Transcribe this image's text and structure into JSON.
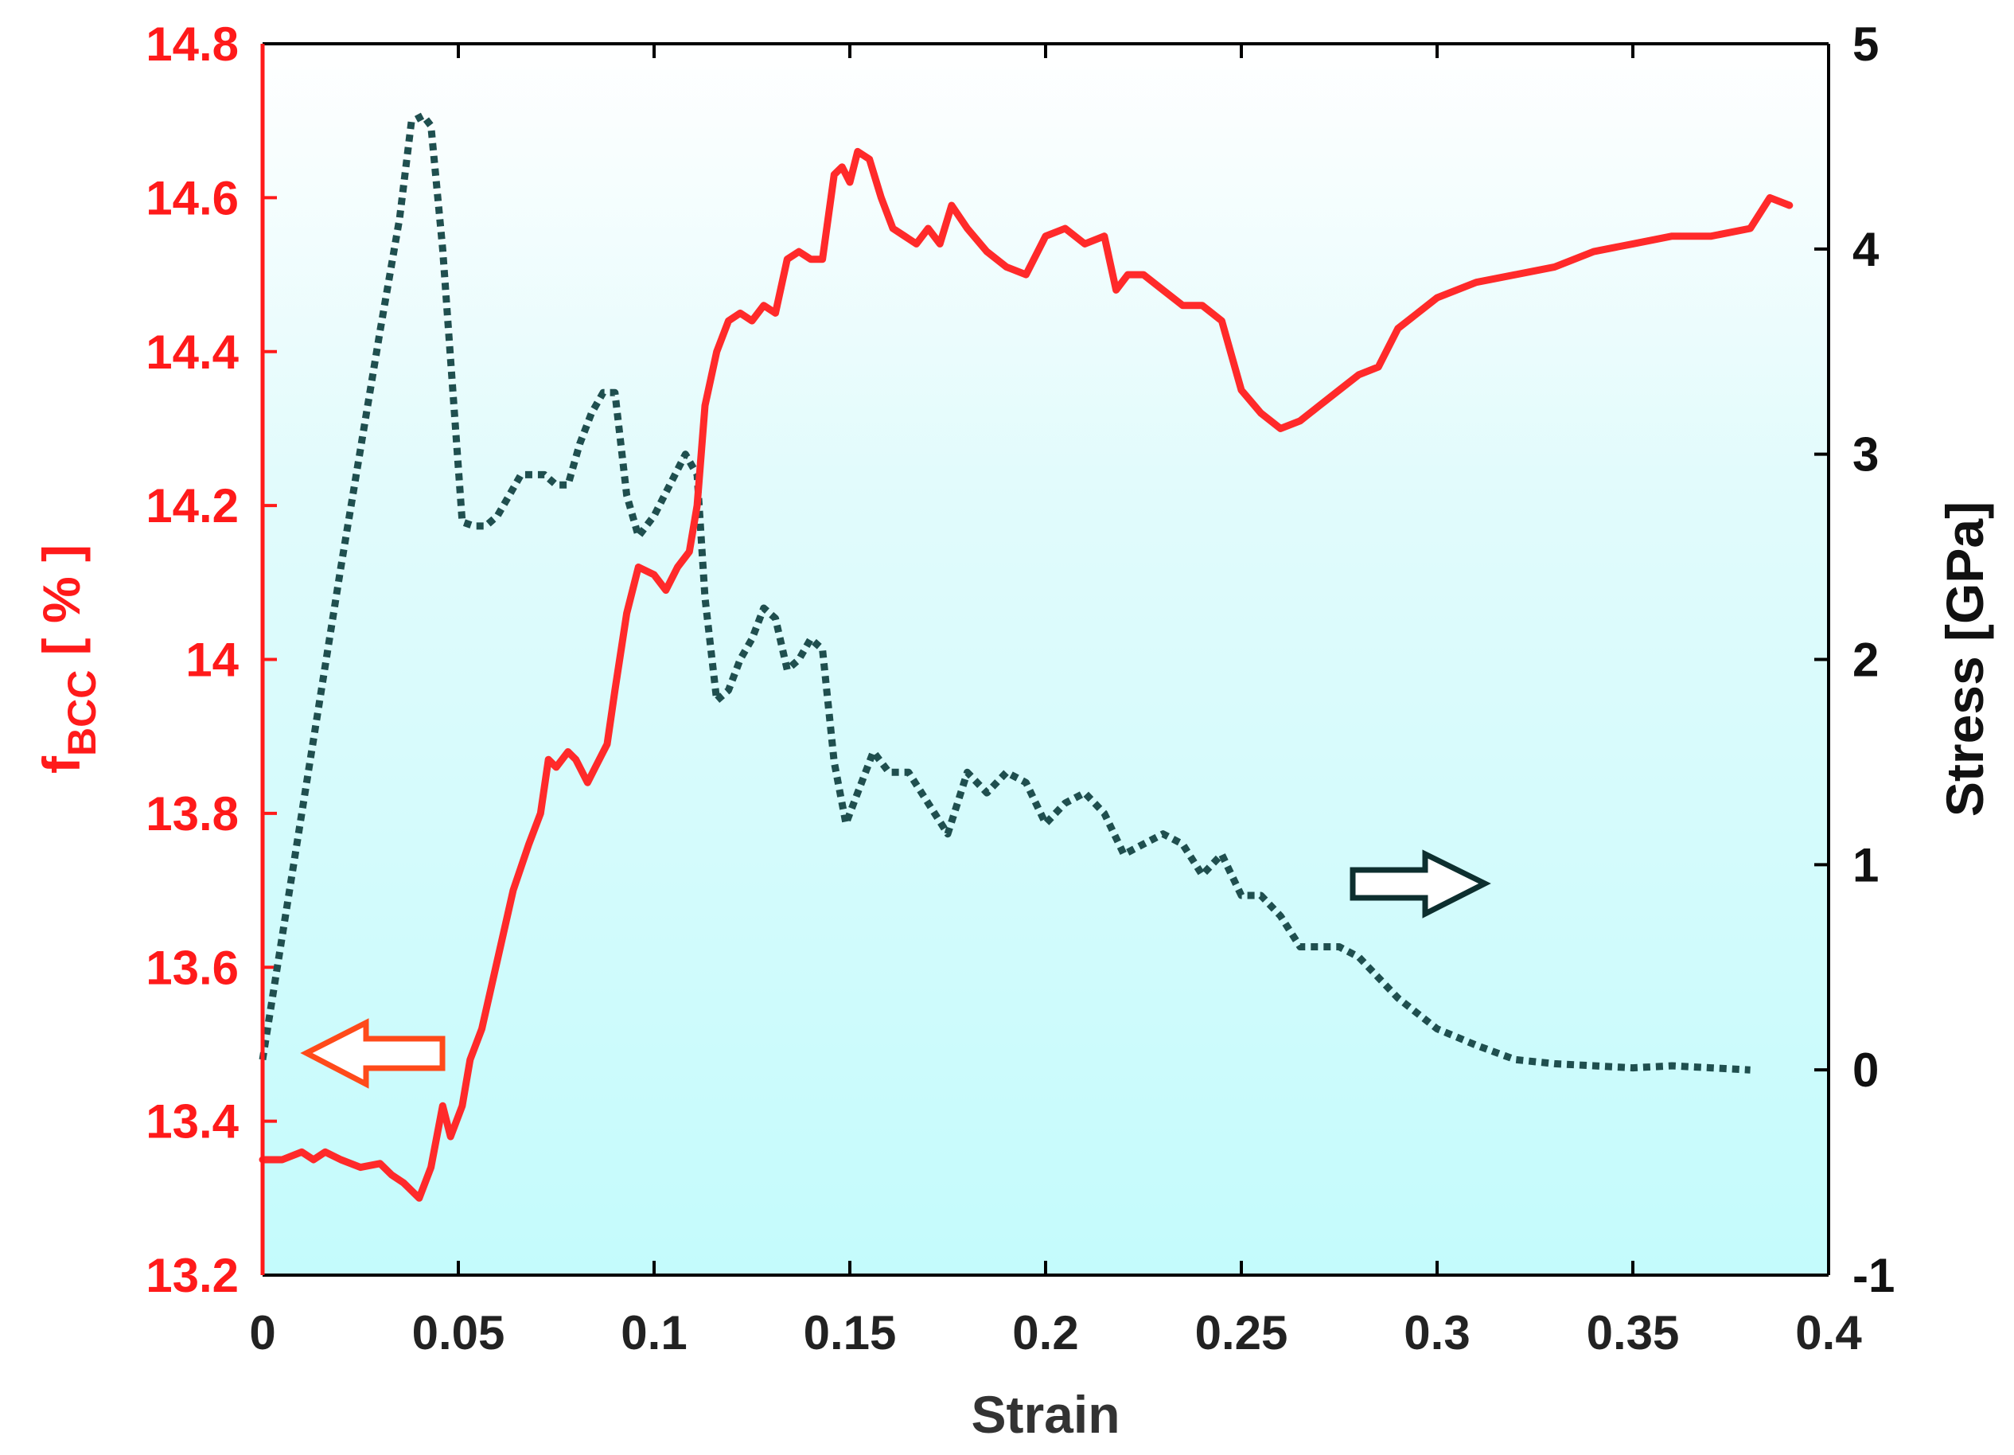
{
  "chart_data": {
    "type": "line",
    "xlabel": "Strain",
    "ylabel_left": {
      "main": "f",
      "sub": "BCC",
      "unit": " [ % ]"
    },
    "ylabel_right": "Stress [GPa]",
    "xlim": [
      0,
      0.4
    ],
    "ylim_left": [
      13.2,
      14.8
    ],
    "ylim_right": [
      -1,
      5
    ],
    "x_ticks": [
      "0",
      "0.05",
      "0.1",
      "0.15",
      "0.2",
      "0.25",
      "0.3",
      "0.35",
      "0.4"
    ],
    "y_left_ticks": [
      "13.2",
      "13.4",
      "13.6",
      "13.8",
      "14",
      "14.2",
      "14.4",
      "14.6",
      "14.8"
    ],
    "y_right_ticks": [
      "-1",
      "0",
      "1",
      "2",
      "3",
      "4",
      "5"
    ],
    "grid": false,
    "background": "light-cyan gradient",
    "colors": {
      "fbcc": "#ff2a2a",
      "stress": "#1f4f4f",
      "left_axis": "#ff1a1a",
      "right_axis": "#000000",
      "left_arrow": "#ff4a1a",
      "right_arrow": "#0d2f2f"
    },
    "annotations": [
      {
        "icon": "left-arrow-icon",
        "meaning": "left axis"
      },
      {
        "icon": "right-arrow-icon",
        "meaning": "right axis"
      }
    ],
    "series": [
      {
        "axis": "left",
        "style": "solid",
        "x": [
          0,
          0.005,
          0.01,
          0.013,
          0.016,
          0.02,
          0.025,
          0.03,
          0.033,
          0.036,
          0.04,
          0.043,
          0.046,
          0.048,
          0.051,
          0.053,
          0.056,
          0.06,
          0.064,
          0.068,
          0.071,
          0.073,
          0.075,
          0.078,
          0.08,
          0.083,
          0.085,
          0.088,
          0.09,
          0.093,
          0.096,
          0.1,
          0.103,
          0.106,
          0.109,
          0.111,
          0.113,
          0.116,
          0.119,
          0.122,
          0.125,
          0.128,
          0.131,
          0.134,
          0.137,
          0.14,
          0.143,
          0.146,
          0.148,
          0.15,
          0.152,
          0.155,
          0.158,
          0.161,
          0.164,
          0.167,
          0.17,
          0.173,
          0.176,
          0.18,
          0.185,
          0.19,
          0.195,
          0.2,
          0.205,
          0.21,
          0.215,
          0.218,
          0.221,
          0.225,
          0.23,
          0.235,
          0.24,
          0.245,
          0.25,
          0.255,
          0.26,
          0.265,
          0.27,
          0.275,
          0.28,
          0.285,
          0.29,
          0.3,
          0.31,
          0.32,
          0.33,
          0.34,
          0.35,
          0.36,
          0.37,
          0.38,
          0.385,
          0.39
        ],
        "y": [
          13.35,
          13.35,
          13.36,
          13.35,
          13.36,
          13.35,
          13.34,
          13.345,
          13.33,
          13.32,
          13.3,
          13.34,
          13.42,
          13.38,
          13.42,
          13.48,
          13.52,
          13.61,
          13.7,
          13.76,
          13.8,
          13.87,
          13.86,
          13.88,
          13.87,
          13.84,
          13.86,
          13.89,
          13.96,
          14.06,
          14.12,
          14.11,
          14.09,
          14.12,
          14.14,
          14.2,
          14.33,
          14.4,
          14.44,
          14.45,
          14.44,
          14.46,
          14.45,
          14.52,
          14.53,
          14.52,
          14.52,
          14.63,
          14.64,
          14.62,
          14.66,
          14.65,
          14.6,
          14.56,
          14.55,
          14.54,
          14.56,
          14.54,
          14.59,
          14.56,
          14.53,
          14.51,
          14.5,
          14.55,
          14.56,
          14.54,
          14.55,
          14.48,
          14.5,
          14.5,
          14.48,
          14.46,
          14.46,
          14.44,
          14.35,
          14.32,
          14.3,
          14.31,
          14.33,
          14.35,
          14.37,
          14.38,
          14.43,
          14.47,
          14.49,
          14.5,
          14.51,
          14.53,
          14.54,
          14.55,
          14.55,
          14.56,
          14.6,
          14.59
        ]
      },
      {
        "axis": "right",
        "style": "dotted",
        "x": [
          0,
          0.01,
          0.02,
          0.03,
          0.035,
          0.038,
          0.041,
          0.043,
          0.046,
          0.049,
          0.051,
          0.054,
          0.057,
          0.06,
          0.063,
          0.066,
          0.069,
          0.072,
          0.075,
          0.078,
          0.081,
          0.084,
          0.087,
          0.09,
          0.093,
          0.096,
          0.1,
          0.104,
          0.108,
          0.111,
          0.113,
          0.116,
          0.119,
          0.122,
          0.125,
          0.128,
          0.131,
          0.134,
          0.137,
          0.14,
          0.143,
          0.146,
          0.149,
          0.152,
          0.156,
          0.16,
          0.165,
          0.17,
          0.175,
          0.18,
          0.185,
          0.19,
          0.195,
          0.2,
          0.205,
          0.21,
          0.215,
          0.22,
          0.225,
          0.23,
          0.235,
          0.24,
          0.245,
          0.25,
          0.255,
          0.26,
          0.265,
          0.27,
          0.275,
          0.28,
          0.285,
          0.29,
          0.3,
          0.31,
          0.32,
          0.33,
          0.34,
          0.35,
          0.36,
          0.37,
          0.38
        ],
        "y": [
          0.05,
          1.25,
          2.45,
          3.6,
          4.15,
          4.62,
          4.65,
          4.6,
          4.0,
          3.2,
          2.67,
          2.65,
          2.65,
          2.7,
          2.8,
          2.9,
          2.9,
          2.9,
          2.85,
          2.85,
          3.05,
          3.2,
          3.3,
          3.3,
          2.8,
          2.6,
          2.7,
          2.85,
          3.0,
          2.9,
          2.3,
          1.8,
          1.85,
          2.0,
          2.1,
          2.25,
          2.2,
          1.95,
          2.0,
          2.1,
          2.05,
          1.5,
          1.2,
          1.35,
          1.55,
          1.45,
          1.45,
          1.3,
          1.15,
          1.45,
          1.35,
          1.45,
          1.4,
          1.2,
          1.3,
          1.35,
          1.25,
          1.05,
          1.1,
          1.15,
          1.1,
          0.95,
          1.05,
          0.85,
          0.85,
          0.75,
          0.6,
          0.6,
          0.6,
          0.55,
          0.45,
          0.35,
          0.2,
          0.12,
          0.05,
          0.03,
          0.02,
          0.01,
          0.02,
          0.01,
          0.0
        ]
      }
    ]
  }
}
